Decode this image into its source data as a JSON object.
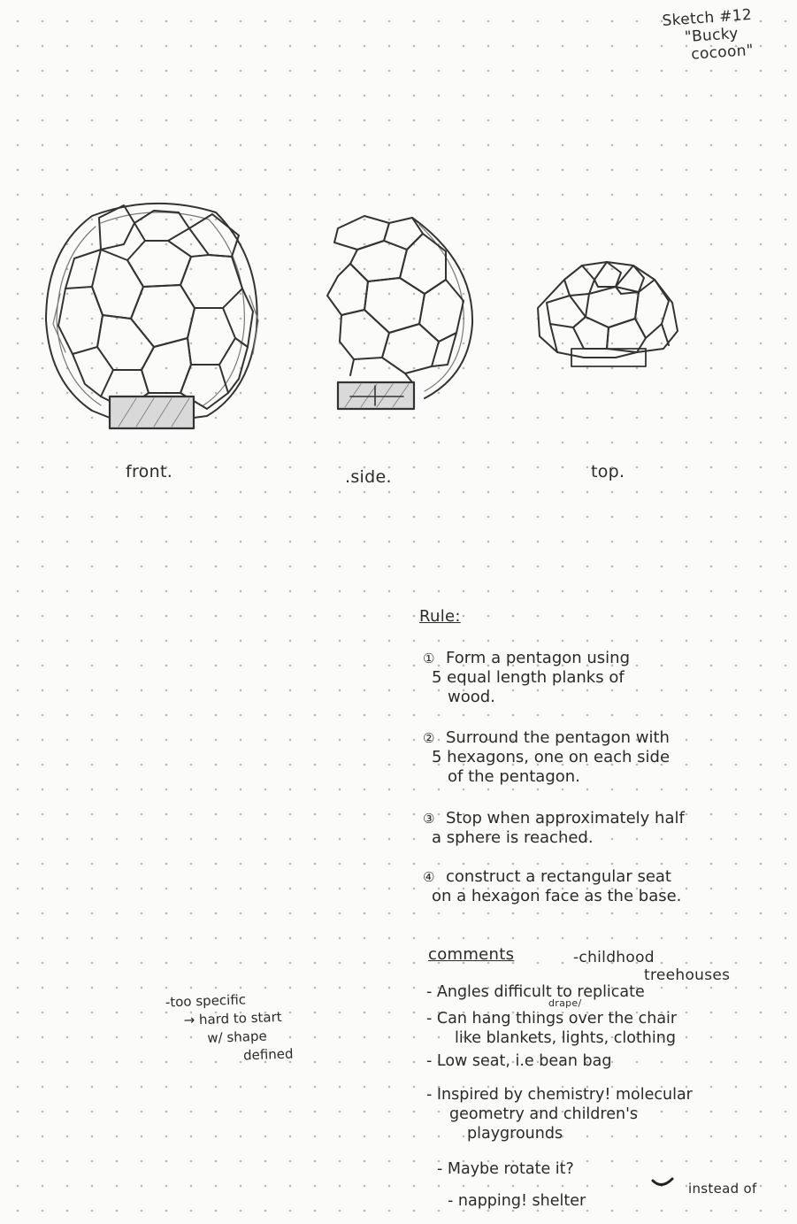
{
  "title": {
    "number": "Sketch #12",
    "name_line1": "\"Bucky",
    "name_line2": "cocoon\""
  },
  "views": {
    "front": "front.",
    "side": ".side.",
    "top": "top."
  },
  "rules": {
    "heading": "Rule:",
    "items": [
      {
        "num": "①",
        "lines": [
          "Form a pentagon using",
          "5 equal length planks of",
          "wood."
        ]
      },
      {
        "num": "②",
        "lines": [
          "Surround the pentagon with",
          "5 hexagons, one on each side",
          "of the pentagon."
        ]
      },
      {
        "num": "③",
        "lines": [
          "Stop when approximately half",
          "a sphere is reached."
        ]
      },
      {
        "num": "④",
        "lines": [
          "construct a rectangular seat",
          "on a hexagon face as the base."
        ]
      }
    ]
  },
  "comments": {
    "heading": "comments",
    "aside_line1": "-childhood",
    "aside_line2": "treehouses",
    "items": [
      {
        "lines": [
          "- Angles difficult to replicate"
        ]
      },
      {
        "caret": "drape/",
        "lines": [
          "- Can hang things over the chair",
          "like blankets, lights, clothing"
        ]
      },
      {
        "lines": [
          "- Low seat, i.e bean bag"
        ]
      },
      {
        "lines": [
          "- Inspired by chemistry! molecular",
          "geometry and children's",
          "playgrounds"
        ]
      },
      {
        "lines": [
          "- Maybe rotate it?"
        ]
      },
      {
        "lines": [
          "- napping! shelter"
        ]
      }
    ],
    "instead_of": "instead of"
  },
  "side_note": {
    "lines": [
      "-too specific",
      "→ hard to start",
      "w/ shape",
      "defined"
    ]
  }
}
